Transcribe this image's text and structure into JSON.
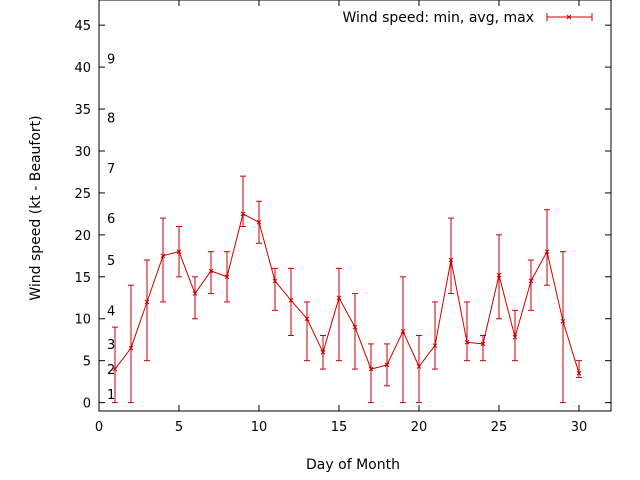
{
  "chart_data": {
    "type": "line",
    "xlabel": "Day of Month",
    "ylabel": "Wind speed (kt - Beaufort)",
    "xlim": [
      0,
      32
    ],
    "ylim": [
      -1,
      48
    ],
    "xticks": [
      "0",
      "5",
      "10",
      "15",
      "20",
      "25",
      "30"
    ],
    "xtick_values": [
      0,
      5,
      10,
      15,
      20,
      25,
      30
    ],
    "yticks": [
      "0",
      "5",
      "10",
      "15",
      "20",
      "25",
      "30",
      "35",
      "40",
      "45"
    ],
    "ytick_values": [
      0,
      5,
      10,
      15,
      20,
      25,
      30,
      35,
      40,
      45
    ],
    "beaufort_labels": [
      "1",
      "2",
      "3",
      "4",
      "5",
      "6",
      "7",
      "8",
      "9"
    ],
    "beaufort_values": [
      1,
      4,
      7,
      11,
      17,
      22,
      28,
      34,
      41
    ],
    "grid": false,
    "legend_position": "top-right",
    "series": [
      {
        "name": "Wind speed: min, avg, max",
        "color": "#cc0000",
        "x": [
          1,
          2,
          3,
          4,
          5,
          6,
          7,
          8,
          9,
          10,
          11,
          12,
          13,
          14,
          15,
          16,
          17,
          18,
          19,
          20,
          21,
          22,
          23,
          24,
          25,
          26,
          27,
          28,
          29,
          30
        ],
        "avg": [
          4,
          6.5,
          12,
          17.5,
          18,
          13,
          15.7,
          15,
          22.5,
          21.5,
          14.5,
          12.2,
          10,
          6,
          12.5,
          9,
          4,
          4.5,
          8.5,
          4.3,
          6.8,
          17,
          7.2,
          7,
          15.2,
          7.8,
          14.5,
          18,
          9.7,
          3.5
        ],
        "min": [
          0,
          0,
          5,
          12,
          15,
          10,
          13,
          12,
          21,
          19,
          11,
          8,
          5,
          4,
          5,
          4,
          0,
          2,
          0,
          0,
          4,
          13,
          5,
          5,
          10,
          5,
          11,
          14,
          0,
          3
        ],
        "max": [
          9,
          14,
          17,
          22,
          21,
          15,
          18,
          18,
          27,
          24,
          16,
          16,
          12,
          8,
          16,
          13,
          7,
          7,
          15,
          8,
          12,
          22,
          12,
          8,
          20,
          11,
          17,
          23,
          18,
          5
        ]
      }
    ]
  }
}
